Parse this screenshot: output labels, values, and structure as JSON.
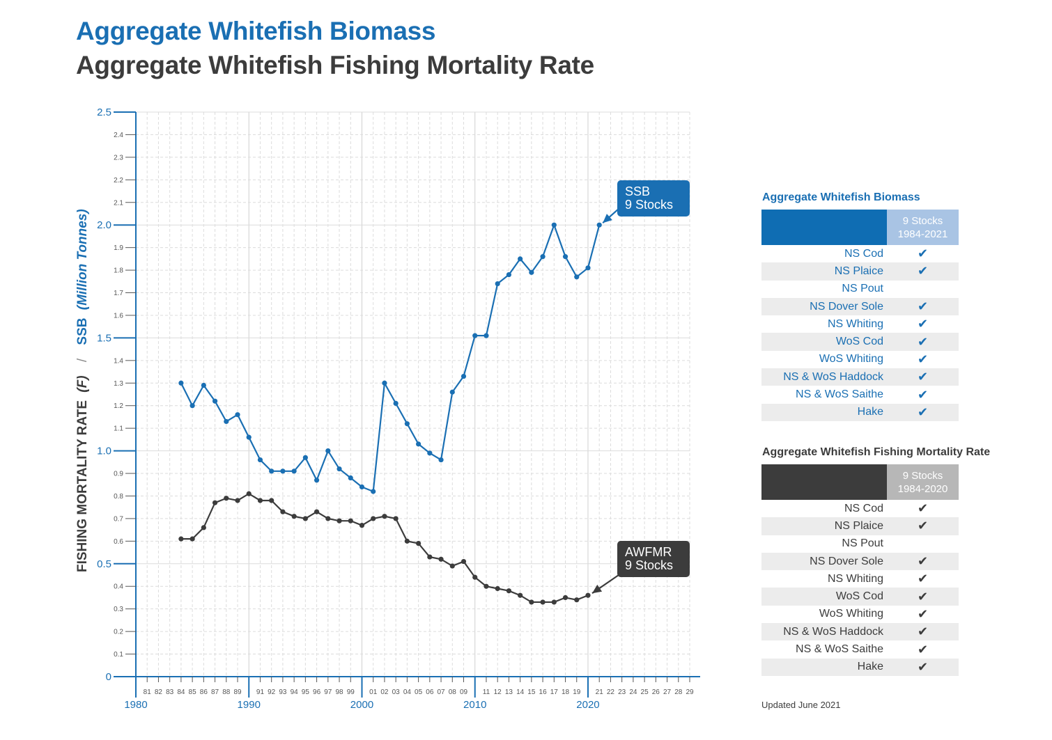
{
  "titles": {
    "biomass": "Aggregate Whitefish Biomass",
    "mortality": "Aggregate Whitefish Fishing Mortality Rate"
  },
  "chart_data": {
    "type": "line",
    "ylabel_fishing": "FISHING MORTALITY RATE",
    "ylabel_fishing_unit": "(F)",
    "ylabel_separator": "/",
    "ylabel_ssb": "SSB",
    "ylabel_ssb_unit": "(Million Tonnes)",
    "ylim": [
      0,
      2.5
    ],
    "y_major_ticks": [
      "0",
      "0.5",
      "1.0",
      "1.5",
      "2.0",
      "2.5"
    ],
    "y_minor_ticks": [
      "0.1",
      "0.2",
      "0.3",
      "0.4",
      "0.6",
      "0.7",
      "0.8",
      "0.9",
      "1.1",
      "1.2",
      "1.3",
      "1.4",
      "1.6",
      "1.7",
      "1.8",
      "1.9",
      "2.1",
      "2.2",
      "2.3",
      "2.4"
    ],
    "xlim": [
      1980,
      2029
    ],
    "x_decade_labels": [
      "1980",
      "1990",
      "2000",
      "2010",
      "2020"
    ],
    "x_year_labels": [
      "81",
      "82",
      "83",
      "84",
      "85",
      "86",
      "87",
      "88",
      "89",
      "91",
      "92",
      "93",
      "94",
      "95",
      "96",
      "97",
      "98",
      "99",
      "01",
      "02",
      "03",
      "04",
      "05",
      "06",
      "07",
      "08",
      "09",
      "11",
      "12",
      "13",
      "14",
      "15",
      "16",
      "17",
      "18",
      "19",
      "21",
      "22",
      "23",
      "24",
      "25",
      "26",
      "27",
      "28",
      "29"
    ],
    "grid": true,
    "series": [
      {
        "name": "SSB",
        "annotation": [
          "SSB",
          "9 Stocks"
        ],
        "color": "#1a6fb3",
        "x": [
          1984,
          1985,
          1986,
          1987,
          1988,
          1989,
          1990,
          1991,
          1992,
          1993,
          1994,
          1995,
          1996,
          1997,
          1998,
          1999,
          2000,
          2001,
          2002,
          2003,
          2004,
          2005,
          2006,
          2007,
          2008,
          2009,
          2010,
          2011,
          2012,
          2013,
          2014,
          2015,
          2016,
          2017,
          2018,
          2019,
          2020,
          2021
        ],
        "y": [
          1.3,
          1.2,
          1.29,
          1.22,
          1.13,
          1.16,
          1.06,
          0.96,
          0.91,
          0.91,
          0.91,
          0.97,
          0.87,
          1.0,
          0.92,
          0.88,
          0.84,
          0.82,
          1.3,
          1.21,
          1.12,
          1.03,
          0.99,
          0.96,
          1.26,
          1.33,
          1.51,
          1.51,
          1.74,
          1.78,
          1.85,
          1.79,
          1.86,
          2.0,
          1.86,
          1.77,
          1.81,
          2.0
        ]
      },
      {
        "name": "AWFMR",
        "annotation": [
          "AWFMR",
          "9 Stocks"
        ],
        "color": "#3c3c3c",
        "x": [
          1984,
          1985,
          1986,
          1987,
          1988,
          1989,
          1990,
          1991,
          1992,
          1993,
          1994,
          1995,
          1996,
          1997,
          1998,
          1999,
          2000,
          2001,
          2002,
          2003,
          2004,
          2005,
          2006,
          2007,
          2008,
          2009,
          2010,
          2011,
          2012,
          2013,
          2014,
          2015,
          2016,
          2017,
          2018,
          2019,
          2020
        ],
        "y": [
          0.61,
          0.61,
          0.66,
          0.77,
          0.79,
          0.78,
          0.81,
          0.78,
          0.78,
          0.73,
          0.71,
          0.7,
          0.73,
          0.7,
          0.69,
          0.69,
          0.67,
          0.7,
          0.71,
          0.7,
          0.6,
          0.59,
          0.53,
          0.52,
          0.49,
          0.51,
          0.44,
          0.4,
          0.39,
          0.38,
          0.36,
          0.33,
          0.33,
          0.33,
          0.35,
          0.34,
          0.36
        ]
      }
    ]
  },
  "biomass_table": {
    "title": "Aggregate Whitefish Biomass",
    "header_line1": "9 Stocks",
    "header_line2": "1984-2021",
    "header_color": "#0f6db3",
    "cell_color": "#a9c4e4",
    "rows": [
      {
        "name": "NS Cod",
        "check": "✔"
      },
      {
        "name": "NS Plaice",
        "check": "✔"
      },
      {
        "name": "NS Pout",
        "check": ""
      },
      {
        "name": "NS Dover Sole",
        "check": "✔"
      },
      {
        "name": "NS Whiting",
        "check": "✔"
      },
      {
        "name": "WoS Cod",
        "check": "✔"
      },
      {
        "name": "WoS Whiting",
        "check": "✔"
      },
      {
        "name": "NS & WoS Haddock",
        "check": "✔"
      },
      {
        "name": "NS & WoS Saithe",
        "check": "✔"
      },
      {
        "name": "Hake",
        "check": "✔"
      }
    ]
  },
  "mortality_table": {
    "title": "Aggregate Whitefish Fishing Mortality Rate",
    "header_line1": "9 Stocks",
    "header_line2": "1984-2020",
    "header_color": "#3c3c3c",
    "cell_color": "#b7b7b7",
    "rows": [
      {
        "name": "NS Cod",
        "check": "✔"
      },
      {
        "name": "NS Plaice",
        "check": "✔"
      },
      {
        "name": "NS Pout",
        "check": ""
      },
      {
        "name": "NS Dover Sole",
        "check": "✔"
      },
      {
        "name": "NS Whiting",
        "check": "✔"
      },
      {
        "name": "WoS Cod",
        "check": "✔"
      },
      {
        "name": "WoS Whiting",
        "check": "✔"
      },
      {
        "name": "NS & WoS Haddock",
        "check": "✔"
      },
      {
        "name": "NS & WoS Saithe",
        "check": "✔"
      },
      {
        "name": "Hake",
        "check": "✔"
      }
    ]
  },
  "footer": {
    "updated": "Updated June 2021"
  }
}
